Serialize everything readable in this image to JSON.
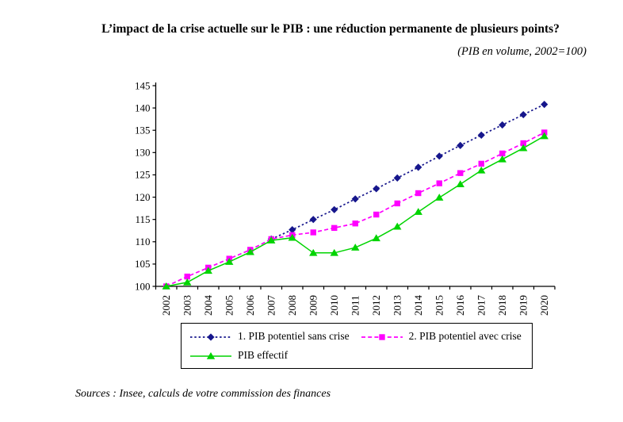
{
  "title": "L’impact de la crise actuelle sur le PIB : une réduction permanente de plusieurs points?",
  "subtitle": "(PIB en volume, 2002=100)",
  "source_note": "Sources : Insee, calculs de votre commission des finances",
  "chart_data": {
    "type": "line",
    "title": "L’impact de la crise actuelle sur le PIB : une réduction permanente de plusieurs points?",
    "subtitle": "(PIB en volume, 2002=100)",
    "categories": [
      "2002",
      "2003",
      "2004",
      "2005",
      "2006",
      "2007",
      "2008",
      "2009",
      "2010",
      "2011",
      "2012",
      "2013",
      "2014",
      "2015",
      "2016",
      "2017",
      "2018",
      "2019",
      "2020"
    ],
    "series": [
      {
        "name": "1. PIB potentiel sans crise",
        "color": "#16168c",
        "marker": "diamond",
        "line_style": "dashed",
        "dash": "2.5,2.8",
        "values": [
          null,
          null,
          null,
          null,
          null,
          110.6,
          112.7,
          115.0,
          117.2,
          119.6,
          121.9,
          124.3,
          126.7,
          129.2,
          131.6,
          133.9,
          136.2,
          138.5,
          140.8
        ]
      },
      {
        "name": "2. PIB potentiel avec crise",
        "color": "#ff00ff",
        "marker": "square",
        "line_style": "dashed",
        "dash": "5,3.2",
        "values": [
          100,
          102.2,
          104.2,
          106.2,
          108.2,
          110.6,
          111.5,
          112.1,
          113.1,
          114.1,
          116.1,
          118.6,
          120.9,
          123.1,
          125.4,
          127.5,
          129.8,
          132.1,
          134.5
        ]
      },
      {
        "name": "PIB effectif",
        "color": "#00d400",
        "marker": "triangle",
        "line_style": "solid",
        "dash": null,
        "values": [
          100,
          100.9,
          103.5,
          105.5,
          107.7,
          110.3,
          110.9,
          107.5,
          107.5,
          108.7,
          110.8,
          113.4,
          116.7,
          119.9,
          122.9,
          126.0,
          128.5,
          131.0,
          133.7
        ]
      }
    ],
    "ylim": [
      100,
      145
    ],
    "ytick_step": 5,
    "grid": false,
    "legend_position": "bottom",
    "axis_color": "#000000"
  }
}
